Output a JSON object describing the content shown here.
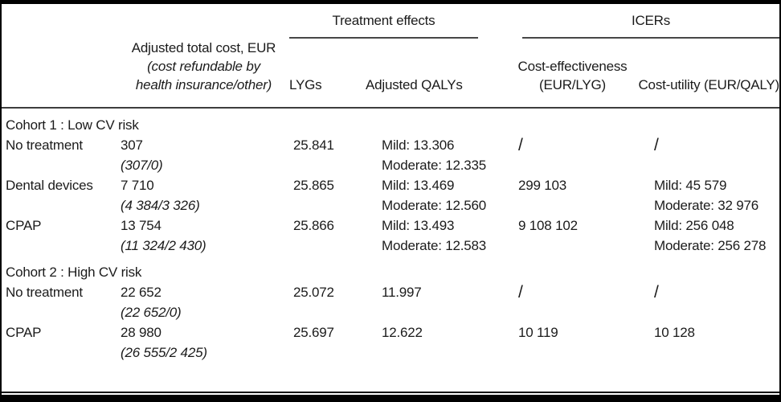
{
  "table": {
    "groups": {
      "treatment_effects": "Treatment effects",
      "icers": "ICERs"
    },
    "columns": {
      "cost_line1": "Adjusted total cost, EUR",
      "cost_line2": "(cost refundable by",
      "cost_line3": "health insurance/other)",
      "lygs": "LYGs",
      "qalys": "Adjusted QALYs",
      "ce_line1": "Cost-effectiveness",
      "ce_line2": "(EUR/LYG)",
      "cu": "Cost-utility (EUR/QALY)"
    },
    "rows": [
      {
        "type": "group",
        "label": "Cohort 1 : Low CV risk"
      },
      {
        "type": "data",
        "label": "No treatment",
        "cost": "307",
        "cost_note": "(307/0)",
        "lyg": "25.841",
        "qaly_line1": "Mild: 13.306",
        "qaly_line2": "Moderate: 12.335",
        "icer_lyg": "/",
        "icer_qaly_line1": "/",
        "icer_qaly_line2": ""
      },
      {
        "type": "data",
        "label": "Dental devices",
        "cost": "7 710",
        "cost_note": "(4 384/3 326)",
        "lyg": "25.865",
        "qaly_line1": "Mild: 13.469",
        "qaly_line2": "Moderate: 12.560",
        "icer_lyg": "299 103",
        "icer_qaly_line1": "Mild: 45 579",
        "icer_qaly_line2": "Moderate: 32 976"
      },
      {
        "type": "data",
        "label": "CPAP",
        "cost": "13 754",
        "cost_note": "(11 324/2 430)",
        "lyg": "25.866",
        "qaly_line1": "Mild: 13.493",
        "qaly_line2": "Moderate: 12.583",
        "icer_lyg": "9 108 102",
        "icer_qaly_line1": "Mild: 256 048",
        "icer_qaly_line2": "Moderate: 256 278"
      },
      {
        "type": "group",
        "label": "Cohort 2 : High CV risk"
      },
      {
        "type": "data",
        "label": "No treatment",
        "cost": "22 652",
        "cost_note": "(22 652/0)",
        "lyg": "25.072",
        "qaly_line1": "11.997",
        "qaly_line2": "",
        "icer_lyg": "/",
        "icer_qaly_line1": "/",
        "icer_qaly_line2": ""
      },
      {
        "type": "data",
        "label": "CPAP",
        "cost": "28 980",
        "cost_note": "(26 555/2 425)",
        "lyg": "25.697",
        "qaly_line1": "12.622",
        "qaly_line2": "",
        "icer_lyg": "10 119",
        "icer_qaly_line1": "10 128",
        "icer_qaly_line2": ""
      }
    ]
  }
}
